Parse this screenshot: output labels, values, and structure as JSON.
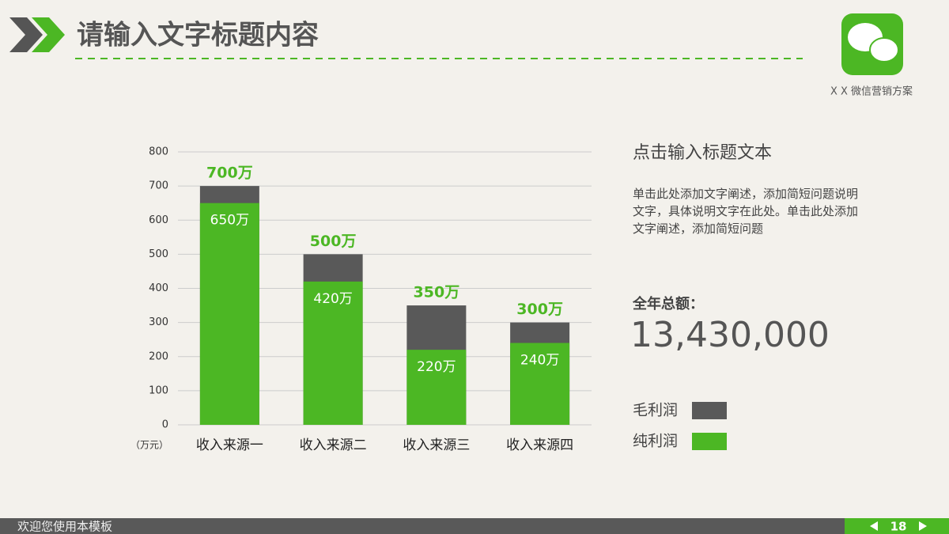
{
  "header": {
    "title": "请输入文字标题内容",
    "brand": "X X 微信营销方案"
  },
  "chart_data": {
    "type": "bar",
    "mode": "overlap",
    "categories": [
      "收入来源一",
      "收入来源二",
      "收入来源三",
      "收入来源四"
    ],
    "unit_label": "（万元）",
    "ylim": [
      0,
      800
    ],
    "yticks": [
      0,
      100,
      200,
      300,
      400,
      500,
      600,
      700,
      800
    ],
    "grid": true,
    "series": [
      {
        "name": "毛利润",
        "color": "#595959",
        "values": [
          700,
          500,
          350,
          300
        ],
        "value_labels": [
          "700万",
          "500万",
          "350万",
          "300万"
        ]
      },
      {
        "name": "纯利润",
        "color": "#4cb724",
        "values": [
          650,
          420,
          220,
          240
        ],
        "value_labels": [
          "650万",
          "420万",
          "220万",
          "240万"
        ]
      }
    ]
  },
  "sidebar": {
    "title": "点击输入标题文本",
    "body": "单击此处添加文字阐述，添加简短问题说明文字，具体说明文字在此处。单击此处添加文字阐述，添加简短问题",
    "total_label": "全年总额：",
    "total_value": "13,430,000"
  },
  "footer": {
    "text": "欢迎您使用本模板",
    "page": "18"
  }
}
